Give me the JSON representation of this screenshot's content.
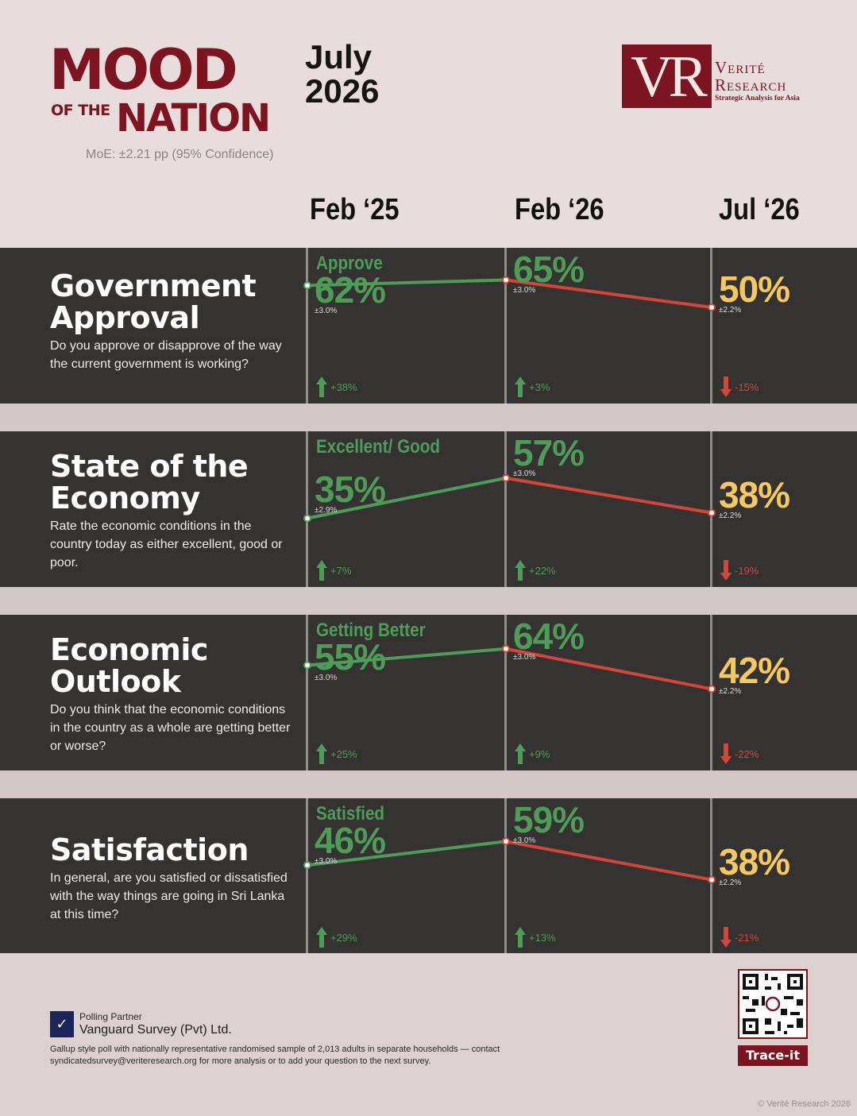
{
  "brand": {
    "line1": "MOOD",
    "line2_small": "OF THE",
    "line2_big": "NATION"
  },
  "edition": {
    "month": "July",
    "year": "2026"
  },
  "moe": "MoE: ±2.21 pp (95% Confidence)",
  "logo": {
    "mark": "VR",
    "line1": "Verité",
    "line2": "Research",
    "tagline": "Strategic Analysis for Asia"
  },
  "columns": [
    "Feb ‘25",
    "Feb ‘26",
    "Jul ‘26"
  ],
  "colors": {
    "up": "#4f9c58",
    "down": "#d3463a",
    "latest": "#f6c865",
    "panel": "#343331",
    "brand": "#7d1520"
  },
  "chart_data": [
    {
      "type": "line",
      "title": "Government Approval",
      "question": "Do you approve or disapprove of the way the current government is working?",
      "series_label": "Approve",
      "x": [
        "Feb ‘25",
        "Feb ‘26",
        "Jul ‘26"
      ],
      "values": [
        62,
        65,
        50
      ],
      "moe": [
        "±3.0%",
        "±3.0%",
        "±2.2%"
      ],
      "changes": [
        "+38%",
        "+3%",
        "-15%"
      ]
    },
    {
      "type": "line",
      "title": "State of the Economy",
      "question": "Rate the economic conditions in the country today as either excellent, good or poor.",
      "series_label": "Excellent/ Good",
      "x": [
        "Feb ‘25",
        "Feb ‘26",
        "Jul ‘26"
      ],
      "values": [
        35,
        57,
        38
      ],
      "moe": [
        "±2.9%",
        "±3.0%",
        "±2.2%"
      ],
      "changes": [
        "+7%",
        "+22%",
        "-19%"
      ]
    },
    {
      "type": "line",
      "title": "Economic Outlook",
      "question": "Do you think that the economic conditions in the country as a whole are getting better or worse?",
      "series_label": "Getting Better",
      "x": [
        "Feb ‘25",
        "Feb ‘26",
        "Jul ‘26"
      ],
      "values": [
        55,
        64,
        42
      ],
      "moe": [
        "±3.0%",
        "±3.0%",
        "±2.2%"
      ],
      "changes": [
        "+25%",
        "+9%",
        "-22%"
      ]
    },
    {
      "type": "line",
      "title": "Satisfaction",
      "question": "In general, are you satisfied or dissatisfied with the way things are going in Sri Lanka at this time?",
      "series_label": "Satisfied",
      "x": [
        "Feb ‘25",
        "Feb ‘26",
        "Jul ‘26"
      ],
      "values": [
        46,
        59,
        38
      ],
      "moe": [
        "±3.0%",
        "±3.0%",
        "±2.2%"
      ],
      "changes": [
        "+29%",
        "+13%",
        "-21%"
      ]
    }
  ],
  "footer": {
    "partner_label": "Polling Partner",
    "partner_name": "Vanguard Survey (Pvt) Ltd.",
    "note": "Gallup style poll with nationally representative randomised sample of 2,013 adults in separate households — contact syndicatedsurvey@veriteresearch.org for more analysis or to add your question to the next survey.",
    "trace": "Trace-it",
    "copyright": "© Verité Research 2026"
  }
}
